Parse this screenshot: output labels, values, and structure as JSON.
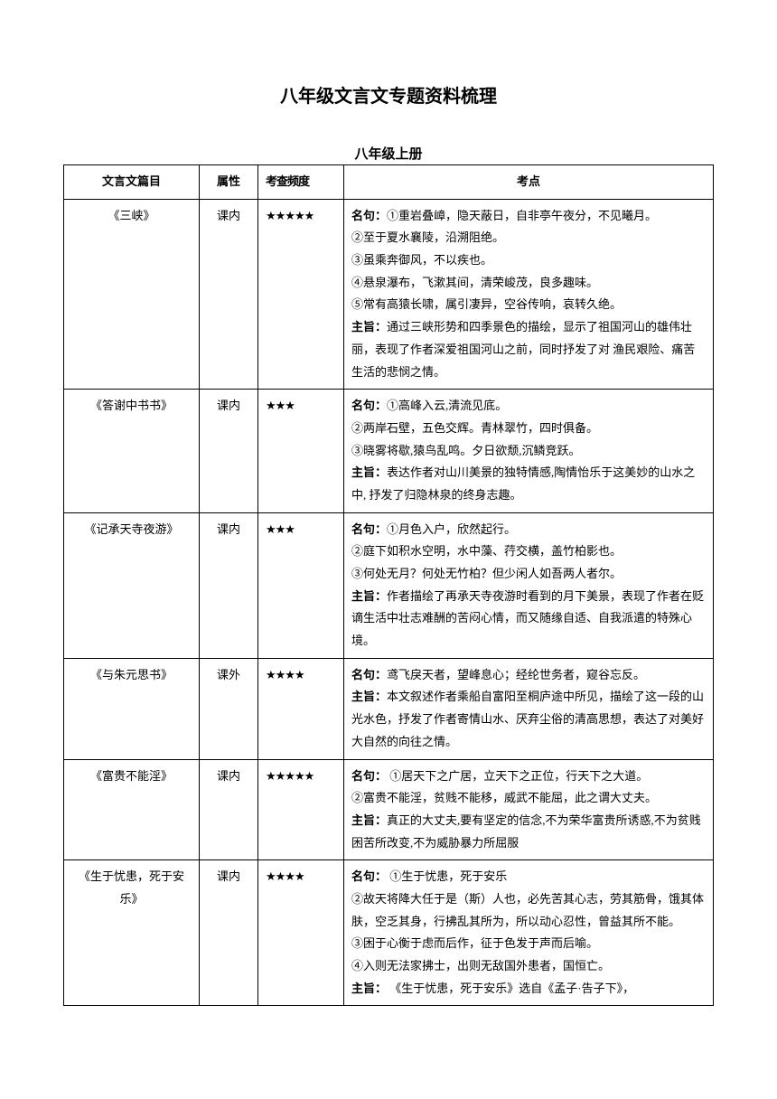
{
  "main_title": "八年级文言文专题资料梳理",
  "sub_title": "八年级上册",
  "headers": {
    "title": "文言文篇目",
    "attribute": "属性",
    "frequency": "考查频度",
    "points": "考点"
  },
  "rows": [
    {
      "title": "《三峡》",
      "attribute": "课内",
      "frequency": "★★★★★",
      "mingju_label": "名句：",
      "lines": [
        "①重岩叠嶂，隐天蔽日，自非亭午夜分，不见曦月。",
        "②至于夏水襄陵，沿溯阻绝。",
        "③虽乘奔御风，不以疾也。",
        "④悬泉瀑布，飞漱其间，清荣峻茂，良多趣味。",
        "⑤常有高猿长啸，属引凄异，空谷传响，哀转久绝。"
      ],
      "zhuzhi_label": "主旨：",
      "zhuzhi": "通过三峡形势和四季景色的描绘，显示了祖国河山的雄伟壮丽，表现了作者深爱祖国河山之前，同时抒发了对 渔民艰险、痛苦生活的悲悯之情。"
    },
    {
      "title": "《答谢中书书》",
      "attribute": "课内",
      "frequency": "★★★",
      "mingju_label": "名句：",
      "lines": [
        "①高峰入云,清流见底。",
        "②两岸石壁，五色交辉。青林翠竹，四时俱备。",
        "③晓雾将歇,猿鸟乱鸣。夕日欲颓,沉鳞竞跃。"
      ],
      "zhuzhi_label": "主旨：",
      "zhuzhi": "表达作者对山川美景的独特情感,陶情怡乐于这美妙的山水之中, 抒发了归隐林泉的终身志趣。"
    },
    {
      "title": "《记承天寺夜游》",
      "attribute": "课内",
      "frequency": "★★★",
      "mingju_label": "名句：",
      "lines": [
        "①月色入户，欣然起行。",
        "②庭下如积水空明，水中藻、荇交横，盖竹柏影也。",
        "③何处无月？何处无竹柏？但少闲人如吾两人者尔。"
      ],
      "zhuzhi_label": "主旨：",
      "zhuzhi": "作者描绘了再承天寺夜游时看到的月下美景，表现了作者在贬谪生活中壮志难酬的苦闷心情，而又随缘自适、自我派遣的特殊心境。"
    },
    {
      "title": "《与朱元思书》",
      "attribute": "课外",
      "frequency": "★★★★",
      "mingju_label": "名句：",
      "lines": [
        "鸢飞戾天者，望峰息心；经纶世务者，窥谷忘反。"
      ],
      "zhuzhi_label": "主旨：",
      "zhuzhi": "本文叙述作者乘船自富阳至桐庐途中所见，描绘了这一段的山光水色，抒发了作者寄情山水、厌弃尘俗的清高思想，表达了对美好大自然的向往之情。"
    },
    {
      "title": "《富贵不能淫》",
      "attribute": "课内",
      "frequency": "★★★★★",
      "mingju_label": "名句：",
      "lines": [
        " ①居天下之广居，立天下之正位，行天下之大道。",
        "②富贵不能淫，贫贱不能移，威武不能屈，此之谓大丈夫。"
      ],
      "zhuzhi_label": "主旨：",
      "zhuzhi": "真正的大丈夫,要有坚定的信念,不为荣华富贵所诱惑,不为贫贱困苦所改变,不为威胁暴力所屈服"
    },
    {
      "title": "《生于忧患，死于安乐》",
      "attribute": "课内",
      "frequency": "★★★★",
      "mingju_label": "名句：",
      "lines": [
        " ①生于忧患，死于安乐",
        "②故天将降大任于是（斯）人也，必先苦其心志，劳其筋骨，饿其体肤，空乏其身，行拂乱其所为，所以动心忍性，曾益其所不能。",
        "③困于心衡于虑而后作，征于色发于声而后喻。",
        "④入则无法家拂士，出则无敌国外患者，国恒亡。"
      ],
      "zhuzhi_label": "主旨：",
      "zhuzhi": " 《生于忧患，死于安乐》选自《孟子·告子下》，"
    }
  ]
}
